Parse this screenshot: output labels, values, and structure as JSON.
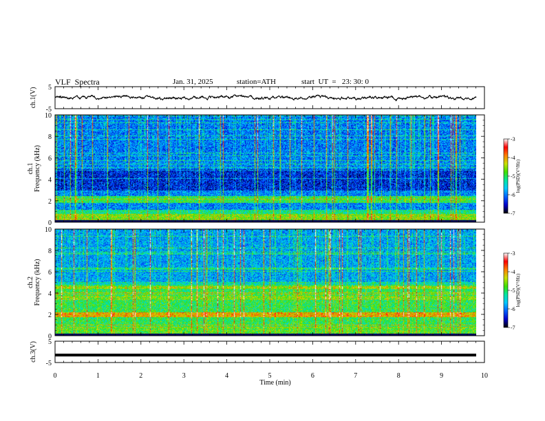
{
  "header": {
    "title": "VLF  Spectra",
    "date": "Jan. 31, 2025",
    "station": "station=ATH",
    "start": "start  UT  =   23: 30: 0"
  },
  "chart_data": [
    {
      "type": "line",
      "panel": "ch1-waveform",
      "ylabel": "ch.1(V)",
      "ylim": [
        -5,
        5
      ],
      "yticks": [
        "5",
        "-5"
      ],
      "xlim": [
        0,
        10
      ],
      "series": [
        {
          "values_description_only": "",
          "color": "#000000"
        }
      ]
    },
    {
      "type": "heatmap",
      "panel": "ch1-spectrogram",
      "ylabel": "ch.1\nFrequency  (kHz)",
      "ylim": [
        0,
        10
      ],
      "yticks": [
        "0",
        "2",
        "4",
        "6",
        "8",
        "10"
      ],
      "xlim": [
        0,
        10
      ],
      "colorbar": {
        "label": "log(PSD)(V²/Hz)",
        "ticks": [
          "-3",
          "-4",
          "-5",
          "-6",
          "-7"
        ],
        "range": [
          -7,
          -3
        ]
      }
    },
    {
      "type": "heatmap",
      "panel": "ch2-spectrogram",
      "ylabel": "ch.2\nFrequency  (kHz)",
      "ylim": [
        0,
        10
      ],
      "yticks": [
        "0",
        "2",
        "4",
        "6",
        "8",
        "10"
      ],
      "xlim": [
        0,
        10
      ],
      "colorbar": {
        "label": "log(PSD)(V²/Hz)",
        "ticks": [
          "-3",
          "-4",
          "-5",
          "-6",
          "-7"
        ],
        "range": [
          -7,
          -3
        ]
      }
    },
    {
      "type": "line",
      "panel": "ch3-waveform",
      "ylabel": "ch.3(V)",
      "ylim": [
        -5,
        5
      ],
      "yticks": [
        "5",
        "-5"
      ],
      "xlim": [
        0,
        10
      ],
      "xlabel": "Time  (min)",
      "xticks": [
        "0",
        "1",
        "2",
        "3",
        "4",
        "5",
        "6",
        "7",
        "8",
        "9",
        "10"
      ],
      "series": [
        {
          "level": -1.5,
          "color": "#000000"
        }
      ]
    }
  ],
  "colors": {
    "colormap": [
      "#000000",
      "#0000cc",
      "#0060ff",
      "#00c8ff",
      "#00e6a0",
      "#40e000",
      "#c8e000",
      "#ff8000",
      "#ff0000",
      "#ffffff"
    ]
  }
}
